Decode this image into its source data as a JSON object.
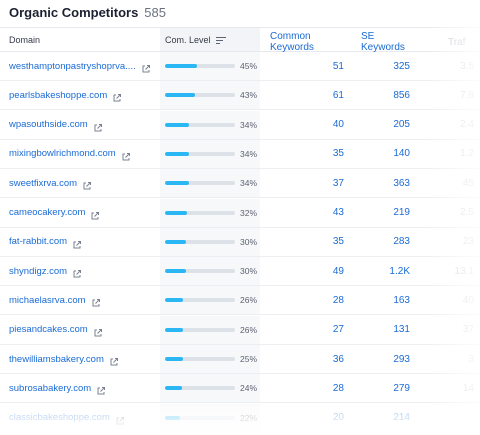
{
  "header": {
    "title": "Organic Competitors",
    "count": "585"
  },
  "columns": {
    "domain": "Domain",
    "com_level": "Com. Level",
    "common_keywords": "Common Keywords",
    "se_keywords": "SE Keywords",
    "traffic": "Traf"
  },
  "colors": {
    "link": "#1a6bd6",
    "bar_fill": "#2bb7f3",
    "bar_track": "#dde1e8"
  },
  "rows": [
    {
      "domain": "westhamptonpastryshoprva....",
      "com_level": 0.45,
      "pct": "45%",
      "common": "51",
      "se": "325",
      "traffic": "3.5"
    },
    {
      "domain": "pearlsbakeshoppe.com",
      "com_level": 0.43,
      "pct": "43%",
      "common": "61",
      "se": "856",
      "traffic": "7.8"
    },
    {
      "domain": "wpasouthside.com",
      "com_level": 0.34,
      "pct": "34%",
      "common": "40",
      "se": "205",
      "traffic": "2.4"
    },
    {
      "domain": "mixingbowlrichmond.com",
      "com_level": 0.34,
      "pct": "34%",
      "common": "35",
      "se": "140",
      "traffic": "1.2"
    },
    {
      "domain": "sweetfixrva.com",
      "com_level": 0.34,
      "pct": "34%",
      "common": "37",
      "se": "363",
      "traffic": "45"
    },
    {
      "domain": "cameocakery.com",
      "com_level": 0.32,
      "pct": "32%",
      "common": "43",
      "se": "219",
      "traffic": "2.5"
    },
    {
      "domain": "fat-rabbit.com",
      "com_level": 0.3,
      "pct": "30%",
      "common": "35",
      "se": "283",
      "traffic": "23"
    },
    {
      "domain": "shyndigz.com",
      "com_level": 0.3,
      "pct": "30%",
      "common": "49",
      "se": "1.2K",
      "traffic": "13.1"
    },
    {
      "domain": "michaelasrva.com",
      "com_level": 0.26,
      "pct": "26%",
      "common": "28",
      "se": "163",
      "traffic": "40"
    },
    {
      "domain": "piesandcakes.com",
      "com_level": 0.26,
      "pct": "26%",
      "common": "27",
      "se": "131",
      "traffic": "37"
    },
    {
      "domain": "thewilliamsbakery.com",
      "com_level": 0.25,
      "pct": "25%",
      "common": "36",
      "se": "293",
      "traffic": "3"
    },
    {
      "domain": "subrosabakery.com",
      "com_level": 0.24,
      "pct": "24%",
      "common": "28",
      "se": "279",
      "traffic": "14"
    },
    {
      "domain": "classicbakeshoppe.com",
      "com_level": 0.22,
      "pct": "22%",
      "common": "20",
      "se": "214",
      "traffic": ""
    }
  ]
}
